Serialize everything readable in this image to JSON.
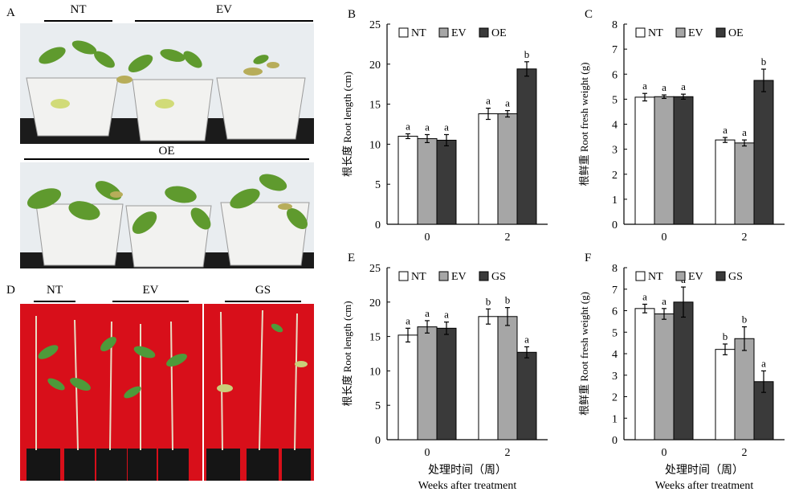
{
  "panels": {
    "A": {
      "letter": "A",
      "groups": [
        "NT",
        "EV",
        "OE"
      ]
    },
    "D": {
      "letter": "D",
      "groups": [
        "NT",
        "EV",
        "GS"
      ]
    }
  },
  "colors": {
    "NT": "#ffffff",
    "EV": "#a6a6a6",
    "OE": "#3a3a3a",
    "GS": "#3a3a3a",
    "photo_red": "#d80f1a",
    "photo_wall": "#e9edf0"
  },
  "chart_data": [
    {
      "id": "B",
      "type": "bar",
      "categories": [
        "0",
        "2"
      ],
      "series": [
        {
          "name": "NT",
          "values": [
            11.0,
            13.8
          ],
          "errors": [
            0.3,
            0.7
          ],
          "letters": [
            "a",
            "a"
          ]
        },
        {
          "name": "EV",
          "values": [
            10.7,
            13.8
          ],
          "errors": [
            0.5,
            0.4
          ],
          "letters": [
            "a",
            "a"
          ]
        },
        {
          "name": "OE",
          "values": [
            10.5,
            19.4
          ],
          "errors": [
            0.7,
            0.9
          ],
          "letters": [
            "a",
            "b"
          ]
        }
      ],
      "ylabel": "根长度 Root length (cm)",
      "xlabel": "",
      "xlabel_en": "",
      "ylim": [
        0,
        25
      ],
      "yticks": [
        "0",
        "5",
        "10",
        "15",
        "20",
        "25"
      ],
      "legend": "top"
    },
    {
      "id": "C",
      "type": "bar",
      "categories": [
        "0",
        "2"
      ],
      "series": [
        {
          "name": "NT",
          "values": [
            5.08,
            3.37
          ],
          "errors": [
            0.15,
            0.1
          ],
          "letters": [
            "a",
            "a"
          ]
        },
        {
          "name": "EV",
          "values": [
            5.1,
            3.25
          ],
          "errors": [
            0.07,
            0.12
          ],
          "letters": [
            "a",
            "a"
          ]
        },
        {
          "name": "OE",
          "values": [
            5.1,
            5.75
          ],
          "errors": [
            0.1,
            0.45
          ],
          "letters": [
            "a",
            "b"
          ]
        }
      ],
      "ylabel": "根鲜重 Root fresh weight (g)",
      "xlabel": "",
      "xlabel_en": "",
      "ylim": [
        0,
        8
      ],
      "yticks": [
        "0",
        "1",
        "2",
        "3",
        "4",
        "5",
        "6",
        "7",
        "8"
      ],
      "legend": "top"
    },
    {
      "id": "E",
      "type": "bar",
      "categories": [
        "0",
        "2"
      ],
      "series": [
        {
          "name": "NT",
          "values": [
            15.2,
            17.9
          ],
          "errors": [
            1.0,
            1.1
          ],
          "letters": [
            "a",
            "b"
          ]
        },
        {
          "name": "EV",
          "values": [
            16.4,
            17.9
          ],
          "errors": [
            0.9,
            1.3
          ],
          "letters": [
            "a",
            "b"
          ]
        },
        {
          "name": "GS",
          "values": [
            16.2,
            12.7
          ],
          "errors": [
            0.9,
            0.8
          ],
          "letters": [
            "a",
            "a"
          ]
        }
      ],
      "ylabel": "根长度 Root length (cm)",
      "xlabel": "处理时间（周）",
      "xlabel_en": "Weeks after treatment",
      "ylim": [
        0,
        25
      ],
      "yticks": [
        "0",
        "5",
        "10",
        "15",
        "20",
        "25"
      ],
      "legend": "top"
    },
    {
      "id": "F",
      "type": "bar",
      "categories": [
        "0",
        "2"
      ],
      "series": [
        {
          "name": "NT",
          "values": [
            6.1,
            4.2
          ],
          "errors": [
            0.2,
            0.25
          ],
          "letters": [
            "a",
            "b"
          ]
        },
        {
          "name": "EV",
          "values": [
            5.85,
            4.7
          ],
          "errors": [
            0.25,
            0.55
          ],
          "letters": [
            "a",
            "b"
          ]
        },
        {
          "name": "GS",
          "values": [
            6.4,
            2.7
          ],
          "errors": [
            0.7,
            0.5
          ],
          "letters": [
            "a",
            "a"
          ]
        }
      ],
      "ylabel": "根鲜重 Root fresh weight (g)",
      "xlabel": "处理时间（周）",
      "xlabel_en": "Weeks after treatment",
      "ylim": [
        0,
        8
      ],
      "yticks": [
        "0",
        "1",
        "2",
        "3",
        "4",
        "5",
        "6",
        "7",
        "8"
      ],
      "legend": "top"
    }
  ]
}
